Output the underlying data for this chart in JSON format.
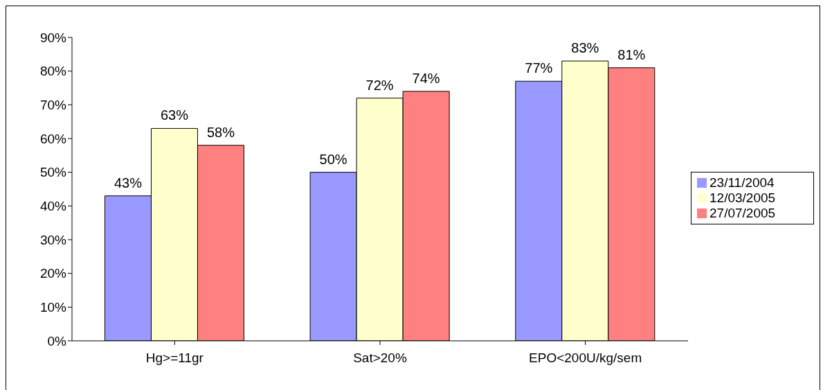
{
  "chart_data": {
    "type": "bar",
    "categories": [
      "Hg>=11gr",
      "Sat>20%",
      "EPO<200U/kg/sem"
    ],
    "series": [
      {
        "name": "23/11/2004",
        "color": "#9999ff",
        "values": [
          43,
          50,
          77
        ],
        "value_labels": [
          "43%",
          "50%",
          "77%"
        ]
      },
      {
        "name": "12/03/2005",
        "color": "#ffffcc",
        "values": [
          63,
          72,
          83
        ],
        "value_labels": [
          "63%",
          "72%",
          "83%"
        ]
      },
      {
        "name": "27/07/2005",
        "color": "#ff8080",
        "values": [
          58,
          74,
          81
        ],
        "value_labels": [
          "58%",
          "74%",
          "81%"
        ]
      }
    ],
    "ylim": [
      0,
      90
    ],
    "yticks": [
      {
        "value": 0,
        "label": "0%"
      },
      {
        "value": 10,
        "label": "10%"
      },
      {
        "value": 20,
        "label": "20%"
      },
      {
        "value": 30,
        "label": "30%"
      },
      {
        "value": 40,
        "label": "40%"
      },
      {
        "value": 50,
        "label": "50%"
      },
      {
        "value": 60,
        "label": "60%"
      },
      {
        "value": 70,
        "label": "70%"
      },
      {
        "value": 80,
        "label": "80%"
      },
      {
        "value": 90,
        "label": "90%"
      }
    ],
    "grid": false,
    "legend": "right"
  }
}
